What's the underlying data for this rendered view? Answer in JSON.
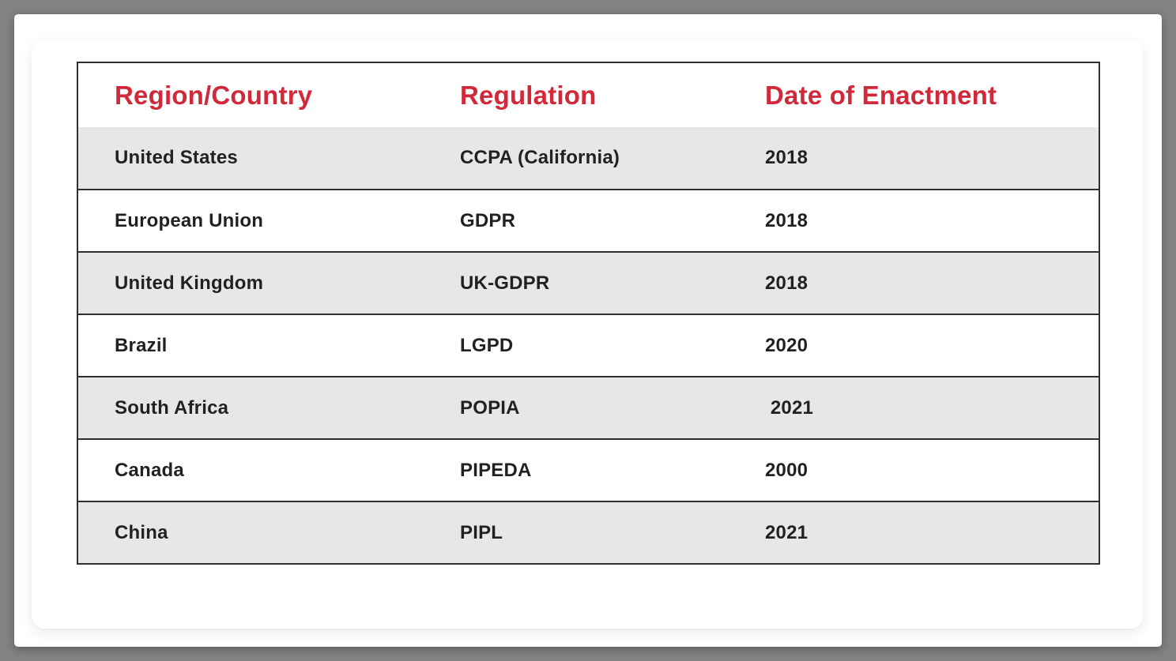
{
  "table": {
    "headers": [
      {
        "label": "Region/Country"
      },
      {
        "label": "Regulation"
      },
      {
        "label": "Date of Enactment"
      }
    ],
    "rows": [
      {
        "region": "United States",
        "regulation": "CCPA (California)",
        "date": "2018"
      },
      {
        "region": "European Union",
        "regulation": "GDPR",
        "date": "2018"
      },
      {
        "region": "United Kingdom",
        "regulation": "UK-GDPR",
        "date": "2018"
      },
      {
        "region": "Brazil",
        "regulation": "LGPD",
        "date": "2020"
      },
      {
        "region": "South Africa",
        "regulation": "POPIA",
        "date": " 2021"
      },
      {
        "region": "Canada",
        "regulation": "PIPEDA",
        "date": "2000"
      },
      {
        "region": "China",
        "regulation": "PIPL",
        "date": "2021"
      }
    ]
  },
  "colors": {
    "header_text": "#D2293A",
    "body_text": "#1F2225",
    "row_stripe": "#E7E7E7",
    "table_border": "#2D3033",
    "page_background": "#828282",
    "card_background": "#FFFFFF"
  }
}
